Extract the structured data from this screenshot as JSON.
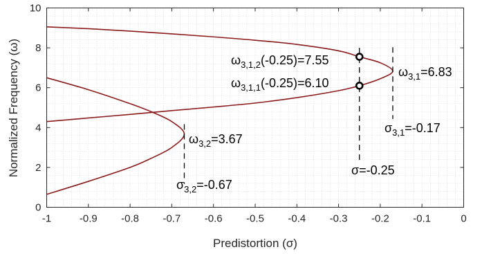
{
  "chart_data": {
    "type": "line",
    "xlabel": "Predistortion (σ)",
    "ylabel": "Normalized Frequency (ω)",
    "xlim": [
      -1,
      0
    ],
    "ylim": [
      0,
      10
    ],
    "xticks": [
      "-1",
      "-0.9",
      "-0.8",
      "-0.7",
      "-0.6",
      "-0.5",
      "-0.4",
      "-0.3",
      "-0.2",
      "-0.1",
      "0"
    ],
    "yticks": [
      "0",
      "2",
      "4",
      "6",
      "8",
      "10"
    ],
    "grid": "minor-dotted",
    "line_color": "#8b1a1a",
    "series": [
      {
        "branch_upper_x": [
          -1,
          -0.9,
          -0.8,
          -0.7,
          -0.6,
          -0.5,
          -0.4,
          -0.3,
          -0.25,
          -0.2,
          -0.17
        ],
        "branch_upper_y": [
          9.05,
          8.96,
          8.84,
          8.7,
          8.55,
          8.38,
          8.17,
          7.85,
          7.55,
          7.25,
          6.83
        ],
        "branch_lower_x": [
          -0.17,
          -0.2,
          -0.25,
          -0.3,
          -0.4,
          -0.5,
          -0.6,
          -0.7,
          -0.8,
          -0.9,
          -1
        ],
        "branch_lower_y": [
          6.83,
          6.45,
          6.1,
          5.85,
          5.5,
          5.23,
          5.03,
          4.85,
          4.66,
          4.48,
          4.3
        ],
        "apex_sigma": -0.17,
        "apex_omega": 6.83
      },
      {
        "branch_upper_x": [
          -1,
          -0.9,
          -0.8,
          -0.75,
          -0.7,
          -0.67
        ],
        "branch_upper_y": [
          6.5,
          5.9,
          5.2,
          4.8,
          4.3,
          3.67
        ],
        "branch_lower_x": [
          -0.67,
          -0.7,
          -0.75,
          -0.8,
          -0.9,
          -1
        ],
        "branch_lower_y": [
          3.67,
          3.0,
          2.45,
          2.0,
          1.3,
          0.65
        ],
        "apex_sigma": -0.67,
        "apex_omega": 3.67
      }
    ],
    "markers": [
      {
        "x": -0.25,
        "y": 7.55
      },
      {
        "x": -0.25,
        "y": 6.1
      }
    ],
    "annotations": {
      "w312": {
        "base": "ω",
        "sub": "3,1,2",
        "rest": "(-0.25)=7.55"
      },
      "w311": {
        "base": "ω",
        "sub": "3,1,1",
        "rest": "(-0.25)=6.10"
      },
      "w31": {
        "base": "ω",
        "sub": "3,1",
        "rest": "=6.83"
      },
      "s31": {
        "base": "σ",
        "sub": "3,1",
        "rest": "=-0.17"
      },
      "w32": {
        "base": "ω",
        "sub": "3,2",
        "rest": "=3.67"
      },
      "s32": {
        "base": "σ",
        "sub": "3,2",
        "rest": "=-0.67"
      },
      "s": {
        "base": "σ",
        "rest": "=-0.25"
      }
    }
  }
}
